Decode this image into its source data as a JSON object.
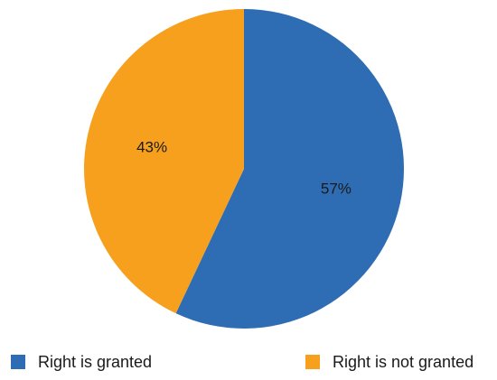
{
  "chart_data": {
    "type": "pie",
    "start_angle_deg": 90,
    "direction": "clockwise",
    "categories": [
      "Right is granted",
      "Right is not granted"
    ],
    "values": [
      57,
      43
    ],
    "labels": [
      "57%",
      "43%"
    ],
    "colors": [
      "#2E6DB4",
      "#F6A01E"
    ],
    "legend_position": "bottom",
    "title": ""
  }
}
